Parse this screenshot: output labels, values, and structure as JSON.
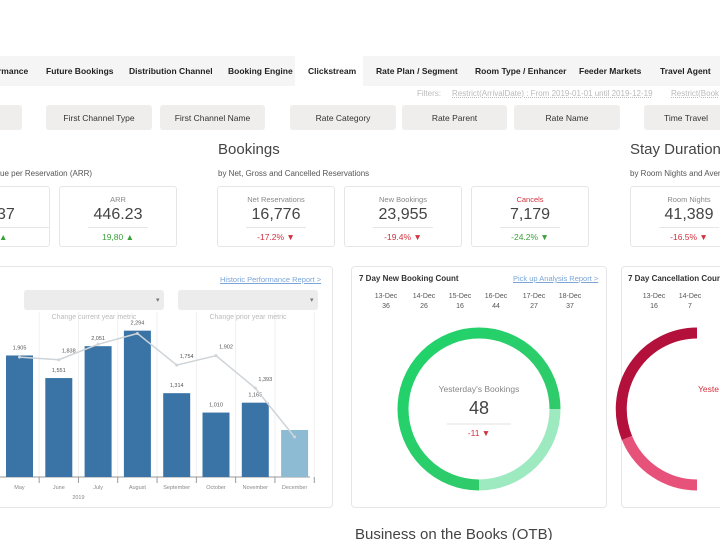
{
  "tabs": [
    "rmance",
    "Future Bookings",
    "Distribution Channel",
    "Booking Engine",
    "Clickstream",
    "Rate Plan / Segment",
    "Room Type / Enhancer",
    "Feeder Markets",
    "Travel Agent"
  ],
  "filters": {
    "label": "Filters:",
    "items": [
      "Restrict(ArrivalDate) : From 2019-01-01 until 2019-12-19",
      "Restrict(Book"
    ]
  },
  "filter_buttons": [
    "First Channel Type",
    "First Channel Name",
    "Rate Category",
    "Rate Parent",
    "Rate Name",
    "Time Travel"
  ],
  "sections": {
    "arr_subtitle": "ue per Reservation (ARR)",
    "bookings": {
      "title": "Bookings",
      "subtitle": "by Net, Gross and Cancelled Reservations"
    },
    "stay": {
      "title": "Stay Duration",
      "subtitle": "by Room Nights and Avera"
    }
  },
  "kpis": [
    {
      "value": "37",
      "change": "▲"
    },
    {
      "label": "ARR",
      "value": "446.23",
      "change": "19,80 ▲"
    },
    {
      "label": "Net Reservations",
      "value": "16,776",
      "change": "-17.2% ▼"
    },
    {
      "label": "New Bookings",
      "value": "23,955",
      "change": "-19.4% ▼"
    },
    {
      "label": "Cancels",
      "value": "7,179",
      "change": "-24.2% ▼"
    },
    {
      "label": "Room Nights",
      "value": "41,389",
      "change": "-16.5% ▼"
    }
  ],
  "history": {
    "link": "Historic Performance Report >",
    "metric_current": "Change current year metric",
    "metric_prior": "Change prior year metric",
    "chart_data": {
      "type": "bar",
      "categories": [
        "May",
        "June",
        "July",
        "August",
        "September",
        "October",
        "November",
        "December"
      ],
      "year_label": "2019",
      "ylim": [
        0,
        2900
      ],
      "series": [
        {
          "type": "bar",
          "colors": [
            "#3a74a6",
            "#3a74a6",
            "#3a74a6",
            "#3a74a6",
            "#3a74a6",
            "#3a74a6",
            "#3a74a6",
            "#8dbbd3"
          ],
          "values": [
            1905,
            1551,
            2051,
            2294,
            1314,
            1010,
            1165,
            737
          ],
          "value_labels": [
            "1,905",
            "1,551",
            "2,051",
            "2,294",
            "1,314",
            "1,010",
            "1,165",
            null
          ]
        },
        {
          "type": "line",
          "color": "#cfd4d8",
          "values": [
            1880,
            1838,
            2080,
            2250,
            1754,
            1902,
            1393,
            627
          ],
          "value_labels": [
            null,
            "1,838",
            null,
            null,
            "1,754",
            "1,902",
            "1,393",
            null
          ]
        }
      ]
    }
  },
  "pickup": {
    "title": "7 Day New Booking Count",
    "link": "Pick up Analysis Report >",
    "dates": [
      "13-Dec",
      "14-Dec",
      "15-Dec",
      "16-Dec",
      "17-Dec",
      "18-Dec"
    ],
    "counts": [
      "36",
      "26",
      "16",
      "44",
      "27",
      "37"
    ],
    "center_label": "Yesterday's Bookings",
    "center_value": "48",
    "center_change": "-11 ▼"
  },
  "cancel": {
    "title": "7 Day Cancellation Count",
    "dates": [
      "13-Dec",
      "14-Dec"
    ],
    "counts": [
      "16",
      "7"
    ],
    "center_label": "Yeste"
  },
  "otb_title": "Business on the Books (OTB)"
}
